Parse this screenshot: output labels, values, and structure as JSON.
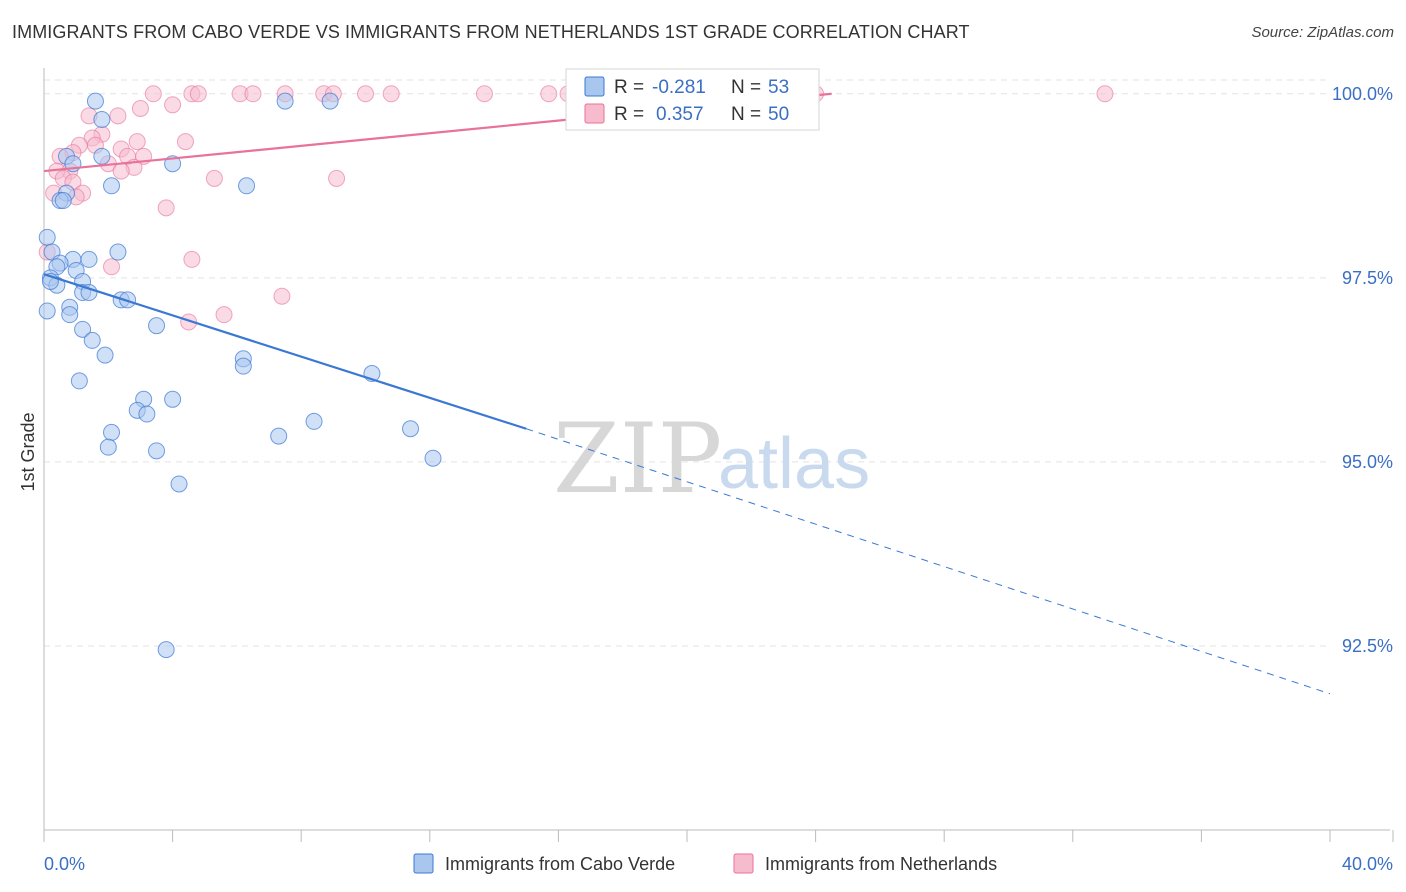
{
  "header": {
    "title": "IMMIGRANTS FROM CABO VERDE VS IMMIGRANTS FROM NETHERLANDS 1ST GRADE CORRELATION CHART",
    "source": "Source: ZipAtlas.com"
  },
  "watermark": {
    "zip": "ZIP",
    "atlas": "atlas"
  },
  "colors": {
    "blue": "#3a78d4",
    "blue_fill": "#a9c6ef",
    "pink": "#e8729a",
    "pink_fill": "#f6bccd",
    "tick_text": "#3a6fc4",
    "grid": "#e3e3e3"
  },
  "stats": {
    "r_label": "R =",
    "n_label": "N =",
    "rows": [
      {
        "series": "Immigrants from Cabo Verde",
        "r": "-0.281",
        "n": "53"
      },
      {
        "series": "Immigrants from Netherlands",
        "r": "0.357",
        "n": "50"
      }
    ]
  },
  "chart_data": {
    "type": "scatter",
    "title": "IMMIGRANTS FROM CABO VERDE VS IMMIGRANTS FROM NETHERLANDS 1ST GRADE CORRELATION CHART",
    "xlabel": "",
    "ylabel": "1st Grade",
    "xlim": [
      0,
      40
    ],
    "ylim": [
      90.0,
      100.35
    ],
    "x_tick_labels": [
      "0.0%",
      "40.0%"
    ],
    "y_ticks": [
      92.5,
      95.0,
      97.5,
      100.0
    ],
    "y_tick_labels": [
      "92.5%",
      "95.0%",
      "97.5%",
      "100.0%"
    ],
    "grid": true,
    "legend_position": "bottom-center",
    "series": [
      {
        "name": "Immigrants from Cabo Verde",
        "color": "#3a78d4",
        "trend": {
          "x_start": 0,
          "y_start": 97.55,
          "x_solid_end": 15.0,
          "y_solid_end": 95.45,
          "x_end": 40,
          "y_end": 91.85
        },
        "points": [
          [
            1.6,
            99.9
          ],
          [
            7.5,
            99.9
          ],
          [
            8.9,
            99.9
          ],
          [
            1.8,
            99.65
          ],
          [
            1.8,
            99.15
          ],
          [
            4.0,
            99.05
          ],
          [
            0.7,
            99.15
          ],
          [
            0.9,
            99.05
          ],
          [
            6.3,
            98.75
          ],
          [
            2.1,
            98.75
          ],
          [
            0.7,
            98.65
          ],
          [
            0.5,
            98.55
          ],
          [
            0.6,
            98.55
          ],
          [
            0.1,
            98.05
          ],
          [
            0.25,
            97.85
          ],
          [
            2.3,
            97.85
          ],
          [
            0.9,
            97.75
          ],
          [
            1.4,
            97.75
          ],
          [
            0.5,
            97.7
          ],
          [
            0.4,
            97.65
          ],
          [
            1.0,
            97.6
          ],
          [
            0.2,
            97.5
          ],
          [
            1.2,
            97.45
          ],
          [
            0.4,
            97.4
          ],
          [
            1.2,
            97.3
          ],
          [
            1.4,
            97.3
          ],
          [
            2.4,
            97.2
          ],
          [
            2.6,
            97.2
          ],
          [
            0.8,
            97.1
          ],
          [
            0.1,
            97.05
          ],
          [
            0.8,
            97.0
          ],
          [
            3.5,
            96.85
          ],
          [
            1.2,
            96.8
          ],
          [
            1.5,
            96.65
          ],
          [
            1.9,
            96.45
          ],
          [
            6.2,
            96.4
          ],
          [
            6.2,
            96.3
          ],
          [
            10.2,
            96.2
          ],
          [
            1.1,
            96.1
          ],
          [
            3.1,
            95.85
          ],
          [
            4.0,
            95.85
          ],
          [
            2.9,
            95.7
          ],
          [
            3.2,
            95.65
          ],
          [
            8.4,
            95.55
          ],
          [
            11.4,
            95.45
          ],
          [
            2.1,
            95.4
          ],
          [
            7.3,
            95.35
          ],
          [
            2.0,
            95.2
          ],
          [
            3.5,
            95.15
          ],
          [
            12.1,
            95.05
          ],
          [
            4.2,
            94.7
          ],
          [
            3.8,
            92.45
          ],
          [
            0.2,
            97.45
          ]
        ]
      },
      {
        "name": "Immigrants from Netherlands",
        "color": "#e8729a",
        "trend": {
          "x_start": 0,
          "y_start": 98.95,
          "x_end": 24.5,
          "y_end": 100.0
        },
        "points": [
          [
            3.4,
            100.0
          ],
          [
            4.6,
            100.0
          ],
          [
            4.8,
            100.0
          ],
          [
            6.1,
            100.0
          ],
          [
            6.5,
            100.0
          ],
          [
            7.5,
            100.0
          ],
          [
            8.7,
            100.0
          ],
          [
            9.0,
            100.0
          ],
          [
            10.0,
            100.0
          ],
          [
            10.8,
            100.0
          ],
          [
            13.7,
            100.0
          ],
          [
            15.7,
            100.0
          ],
          [
            16.3,
            100.0
          ],
          [
            20.0,
            100.0
          ],
          [
            24.0,
            100.0
          ],
          [
            33.0,
            100.0
          ],
          [
            4.0,
            99.85
          ],
          [
            3.0,
            99.8
          ],
          [
            1.4,
            99.7
          ],
          [
            2.3,
            99.7
          ],
          [
            1.8,
            99.45
          ],
          [
            1.5,
            99.4
          ],
          [
            2.9,
            99.35
          ],
          [
            4.4,
            99.35
          ],
          [
            1.1,
            99.3
          ],
          [
            1.6,
            99.3
          ],
          [
            2.4,
            99.25
          ],
          [
            0.9,
            99.2
          ],
          [
            0.5,
            99.15
          ],
          [
            2.6,
            99.15
          ],
          [
            3.1,
            99.15
          ],
          [
            2.0,
            99.05
          ],
          [
            0.8,
            98.95
          ],
          [
            0.4,
            98.95
          ],
          [
            2.8,
            99.0
          ],
          [
            2.4,
            98.95
          ],
          [
            0.6,
            98.85
          ],
          [
            5.3,
            98.85
          ],
          [
            9.1,
            98.85
          ],
          [
            0.9,
            98.8
          ],
          [
            1.2,
            98.65
          ],
          [
            0.3,
            98.65
          ],
          [
            3.8,
            98.45
          ],
          [
            0.1,
            97.85
          ],
          [
            4.6,
            97.75
          ],
          [
            2.1,
            97.65
          ],
          [
            7.4,
            97.25
          ],
          [
            5.6,
            97.0
          ],
          [
            4.5,
            96.9
          ],
          [
            1.0,
            98.6
          ]
        ]
      }
    ]
  }
}
